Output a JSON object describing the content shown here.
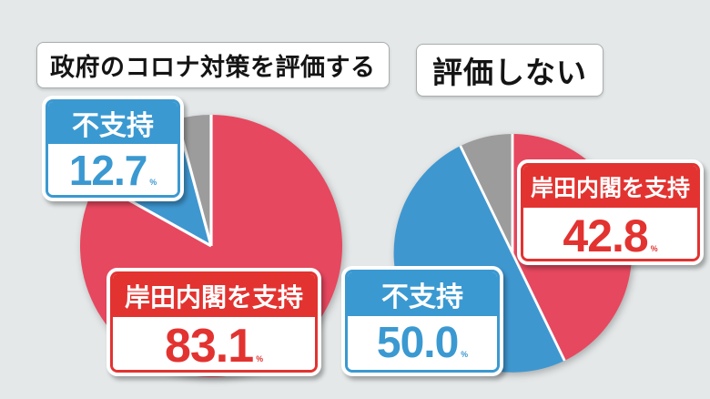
{
  "page": {
    "background": "#e4e8e8"
  },
  "colors": {
    "pie_red": "#e6485f",
    "pie_blue": "#3f97d0",
    "pie_gray": "#9c9c9c",
    "badge_red": "#e23330",
    "badge_blue": "#3b99d1"
  },
  "titles": {
    "left": "政府のコロナ対策を評価する",
    "right": "評価しない"
  },
  "cards": [
    {
      "title": "不支持",
      "value": "12.7",
      "unit": "%",
      "color": "badge_blue"
    },
    {
      "title": "岸田内閣を支持",
      "value": "83.1",
      "unit": "%",
      "color": "badge_red"
    },
    {
      "title": "岸田内閣を支持",
      "value": "42.8",
      "unit": "%",
      "color": "badge_red"
    },
    {
      "title": "不支持",
      "value": "50.0",
      "unit": "%",
      "color": "badge_blue"
    }
  ],
  "chart_data": [
    {
      "type": "pie",
      "title": "政府のコロナ対策を評価する",
      "units": "%",
      "start_angle_deg": 0,
      "direction": "clockwise",
      "legend_position": "callout-badges",
      "slices": [
        {
          "label": "岸田内閣を支持",
          "value": 83.1,
          "color": "pie_red"
        },
        {
          "label": "不支持",
          "value": 12.7,
          "color": "pie_blue"
        },
        {
          "label": "",
          "value": 4.2,
          "color": "pie_gray"
        }
      ]
    },
    {
      "type": "pie",
      "title": "評価しない",
      "units": "%",
      "start_angle_deg": 0,
      "direction": "clockwise",
      "legend_position": "callout-badges",
      "slices": [
        {
          "label": "岸田内閣を支持",
          "value": 42.8,
          "color": "pie_red"
        },
        {
          "label": "不支持",
          "value": 50.0,
          "color": "pie_blue"
        },
        {
          "label": "",
          "value": 7.2,
          "color": "pie_gray"
        }
      ]
    }
  ]
}
